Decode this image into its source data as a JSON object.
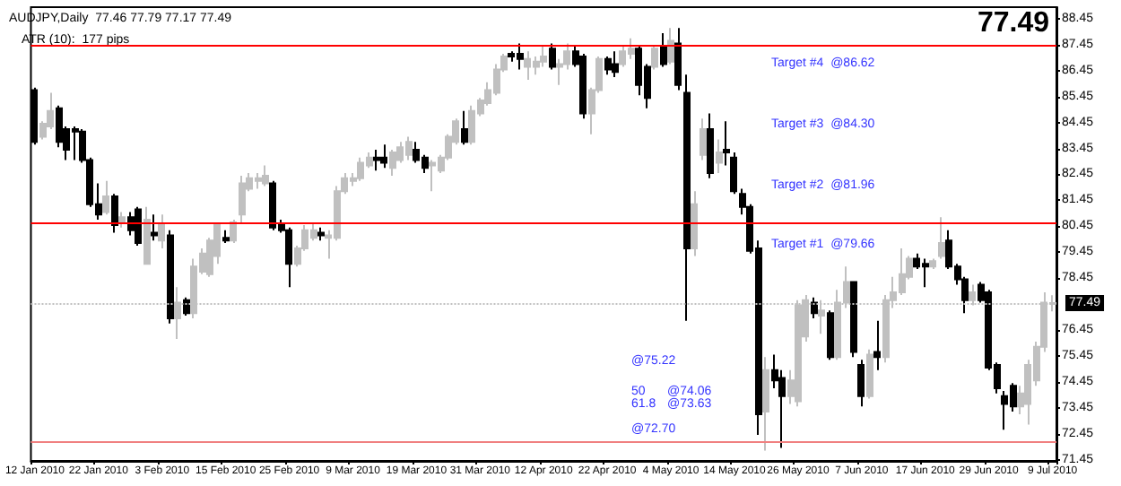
{
  "chart_data": {
    "type": "candlestick",
    "title": "AUDJPY,Daily  77.46 77.79 77.17 77.49",
    "subtitle": "ATR (10):  177 pips",
    "categories": [
      "12 Jan 2010",
      null,
      null,
      null,
      null,
      null,
      null,
      null,
      "22 Jan 2010",
      null,
      null,
      null,
      null,
      null,
      null,
      null,
      "3 Feb 2010",
      null,
      null,
      null,
      null,
      null,
      null,
      null,
      "15 Feb 2010",
      null,
      null,
      null,
      null,
      null,
      null,
      null,
      "25 Feb 2010",
      null,
      null,
      null,
      null,
      null,
      null,
      null,
      "9 Mar 2010",
      null,
      null,
      null,
      null,
      null,
      null,
      null,
      "19 Mar 2010",
      null,
      null,
      null,
      null,
      null,
      null,
      null,
      "31 Mar 2010",
      null,
      null,
      null,
      null,
      null,
      null,
      null,
      "12 Apr 2010",
      null,
      null,
      null,
      null,
      null,
      null,
      null,
      "22 Apr 2010",
      null,
      null,
      null,
      null,
      null,
      null,
      null,
      "4 May 2010",
      null,
      null,
      null,
      null,
      null,
      null,
      null,
      "14 May 2010",
      null,
      null,
      null,
      null,
      null,
      null,
      null,
      "26 May 2010",
      null,
      null,
      null,
      null,
      null,
      null,
      null,
      "7 Jun 2010",
      null,
      null,
      null,
      null,
      null,
      null,
      null,
      "17 Jun 2010",
      null,
      null,
      null,
      null,
      null,
      null,
      null,
      "29 Jun 2010",
      null,
      null,
      null,
      null,
      null,
      null,
      null,
      "9 Jul 2010"
    ],
    "ohlc": [
      [
        85.7,
        85.8,
        83.6,
        83.7
      ],
      [
        83.9,
        84.5,
        83.8,
        84.4
      ],
      [
        84.3,
        85.6,
        84.2,
        84.9
      ],
      [
        85.0,
        85.1,
        83.5,
        83.7
      ],
      [
        84.2,
        84.3,
        83.0,
        83.4
      ],
      [
        84.2,
        84.3,
        83.0,
        84.1
      ],
      [
        84.1,
        84.2,
        82.9,
        83.0
      ],
      [
        83.0,
        83.1,
        81.2,
        81.3
      ],
      [
        81.3,
        82.1,
        80.7,
        80.9
      ],
      [
        81.0,
        82.2,
        80.9,
        81.6
      ],
      [
        81.6,
        81.7,
        80.2,
        80.5
      ],
      [
        80.6,
        81.0,
        80.4,
        80.8
      ],
      [
        80.8,
        81.0,
        80.1,
        80.3
      ],
      [
        81.1,
        81.2,
        79.7,
        79.8
      ],
      [
        79.0,
        81.2,
        79.0,
        80.7
      ],
      [
        80.2,
        80.9,
        79.9,
        80.1
      ],
      [
        79.9,
        80.9,
        79.6,
        80.5
      ],
      [
        80.1,
        80.3,
        76.7,
        76.9
      ],
      [
        76.9,
        78.1,
        76.1,
        77.5
      ],
      [
        77.6,
        77.7,
        77.0,
        77.1
      ],
      [
        77.1,
        79.2,
        76.9,
        78.9
      ],
      [
        78.7,
        79.6,
        78.6,
        79.4
      ],
      [
        78.6,
        80.0,
        78.5,
        79.9
      ],
      [
        79.3,
        80.6,
        79.0,
        80.5
      ],
      [
        80.0,
        80.3,
        79.8,
        79.9
      ],
      [
        79.9,
        80.7,
        79.8,
        80.6
      ],
      [
        80.9,
        82.4,
        80.6,
        82.1
      ],
      [
        81.9,
        82.5,
        81.8,
        82.3
      ],
      [
        82.2,
        82.5,
        81.9,
        82.3
      ],
      [
        82.1,
        82.8,
        82.0,
        82.4
      ],
      [
        82.1,
        82.2,
        80.3,
        80.4
      ],
      [
        80.5,
        80.7,
        80.2,
        80.3
      ],
      [
        80.3,
        80.4,
        78.1,
        79.0
      ],
      [
        79.0,
        79.7,
        78.9,
        79.6
      ],
      [
        79.6,
        80.5,
        79.5,
        80.3
      ],
      [
        80.0,
        80.6,
        79.9,
        80.3
      ],
      [
        80.2,
        80.4,
        79.9,
        80.1
      ],
      [
        80.0,
        80.3,
        79.2,
        80.1
      ],
      [
        80.0,
        82.0,
        79.9,
        81.8
      ],
      [
        81.8,
        82.5,
        81.7,
        82.3
      ],
      [
        82.2,
        82.5,
        82.0,
        82.3
      ],
      [
        82.3,
        83.1,
        82.2,
        82.9
      ],
      [
        82.8,
        83.3,
        82.7,
        83.1
      ],
      [
        83.1,
        83.4,
        82.6,
        83.0
      ],
      [
        83.1,
        83.6,
        82.7,
        82.9
      ],
      [
        82.7,
        83.4,
        82.4,
        83.3
      ],
      [
        83.0,
        83.7,
        82.9,
        83.5
      ],
      [
        83.2,
        83.9,
        83.0,
        83.7
      ],
      [
        83.4,
        83.7,
        82.9,
        83.0
      ],
      [
        83.1,
        83.2,
        82.5,
        82.7
      ],
      [
        82.8,
        83.0,
        81.8,
        82.9
      ],
      [
        82.6,
        83.2,
        82.5,
        83.1
      ],
      [
        83.1,
        84.0,
        83.0,
        83.9
      ],
      [
        83.7,
        84.6,
        83.6,
        84.5
      ],
      [
        84.2,
        84.9,
        83.6,
        83.7
      ],
      [
        83.7,
        85.1,
        83.6,
        84.9
      ],
      [
        84.8,
        85.4,
        84.7,
        85.3
      ],
      [
        85.2,
        86.0,
        85.1,
        85.7
      ],
      [
        85.6,
        86.7,
        85.5,
        86.5
      ],
      [
        86.5,
        87.1,
        86.4,
        87.0
      ],
      [
        87.1,
        87.2,
        86.8,
        87.0
      ],
      [
        87.1,
        87.5,
        86.5,
        86.9
      ],
      [
        86.6,
        87.2,
        86.1,
        86.9
      ],
      [
        86.6,
        87.0,
        86.3,
        86.8
      ],
      [
        86.8,
        87.4,
        86.6,
        87.0
      ],
      [
        87.3,
        87.5,
        86.5,
        86.6
      ],
      [
        86.6,
        86.9,
        85.9,
        86.7
      ],
      [
        86.7,
        87.5,
        86.5,
        87.2
      ],
      [
        87.2,
        87.4,
        86.6,
        86.7
      ],
      [
        87.0,
        87.1,
        84.6,
        84.8
      ],
      [
        84.8,
        85.8,
        84.0,
        85.7
      ],
      [
        85.7,
        87.0,
        85.6,
        86.9
      ],
      [
        86.9,
        87.0,
        86.3,
        86.5
      ],
      [
        86.7,
        87.2,
        86.2,
        86.4
      ],
      [
        86.7,
        87.4,
        86.6,
        87.2
      ],
      [
        87.1,
        87.7,
        86.9,
        87.3
      ],
      [
        87.3,
        87.4,
        85.5,
        85.9
      ],
      [
        86.6,
        86.7,
        85.0,
        85.4
      ],
      [
        86.6,
        87.4,
        86.5,
        87.3
      ],
      [
        87.4,
        87.9,
        86.6,
        86.7
      ],
      [
        86.8,
        88.1,
        86.7,
        87.6
      ],
      [
        87.5,
        88.1,
        85.7,
        85.9
      ],
      [
        85.6,
        86.3,
        76.8,
        79.6
      ],
      [
        79.6,
        81.8,
        79.3,
        81.3
      ],
      [
        83.2,
        84.6,
        83.0,
        84.2
      ],
      [
        84.2,
        84.8,
        82.3,
        82.5
      ],
      [
        82.9,
        83.8,
        82.5,
        83.3
      ],
      [
        83.4,
        84.5,
        82.8,
        83.3
      ],
      [
        83.1,
        83.3,
        81.7,
        81.8
      ],
      [
        81.7,
        81.9,
        80.9,
        81.2
      ],
      [
        81.2,
        81.3,
        79.4,
        79.5
      ],
      [
        79.6,
        79.9,
        72.4,
        73.2
      ],
      [
        73.3,
        75.4,
        71.8,
        74.9
      ],
      [
        74.9,
        75.5,
        74.2,
        74.5
      ],
      [
        74.6,
        74.9,
        71.9,
        73.9
      ],
      [
        73.9,
        74.9,
        73.6,
        74.5
      ],
      [
        73.7,
        77.6,
        73.5,
        77.4
      ],
      [
        76.2,
        77.8,
        76.0,
        77.6
      ],
      [
        77.5,
        77.7,
        76.9,
        77.1
      ],
      [
        77.0,
        77.6,
        76.3,
        77.2
      ],
      [
        77.1,
        77.2,
        75.3,
        75.4
      ],
      [
        75.4,
        78.0,
        75.3,
        77.5
      ],
      [
        77.5,
        78.9,
        77.3,
        78.3
      ],
      [
        78.3,
        78.3,
        75.4,
        75.6
      ],
      [
        75.1,
        75.3,
        73.5,
        73.9
      ],
      [
        73.9,
        75.7,
        73.8,
        75.5
      ],
      [
        75.6,
        76.8,
        74.9,
        75.4
      ],
      [
        75.4,
        77.8,
        75.2,
        77.6
      ],
      [
        77.6,
        78.5,
        77.3,
        77.9
      ],
      [
        77.9,
        79.6,
        77.8,
        78.6
      ],
      [
        78.5,
        79.3,
        78.4,
        79.2
      ],
      [
        79.2,
        79.4,
        78.8,
        78.9
      ],
      [
        79.0,
        79.2,
        78.1,
        78.9
      ],
      [
        78.9,
        79.2,
        78.8,
        79.1
      ],
      [
        79.3,
        80.8,
        79.2,
        79.8
      ],
      [
        79.9,
        80.3,
        78.8,
        78.9
      ],
      [
        78.9,
        79.0,
        78.2,
        78.4
      ],
      [
        78.4,
        78.5,
        77.1,
        77.6
      ],
      [
        77.6,
        78.2,
        77.4,
        77.9
      ],
      [
        78.2,
        78.3,
        77.5,
        77.6
      ],
      [
        77.9,
        78.0,
        74.9,
        75.0
      ],
      [
        75.1,
        75.2,
        74.0,
        74.2
      ],
      [
        73.9,
        74.1,
        72.6,
        73.6
      ],
      [
        74.3,
        74.4,
        73.3,
        73.5
      ],
      [
        73.5,
        74.3,
        73.2,
        74.0
      ],
      [
        73.6,
        75.3,
        72.8,
        75.1
      ],
      [
        74.5,
        76.0,
        74.3,
        75.8
      ],
      [
        75.8,
        77.9,
        75.6,
        77.5
      ],
      [
        77.46,
        77.79,
        77.17,
        77.49
      ]
    ],
    "colors": [
      "#000000",
      "#c0c0c0",
      "#c0c0c0",
      "#000000",
      "#000000",
      "#000000",
      "#000000",
      "#000000",
      "#000000",
      "#c0c0c0",
      "#000000",
      "#c0c0c0",
      "#000000",
      "#000000",
      "#c0c0c0",
      "#000000",
      "#c0c0c0",
      "#000000",
      "#c0c0c0",
      "#000000",
      "#c0c0c0",
      "#c0c0c0",
      "#c0c0c0",
      "#c0c0c0",
      "#000000",
      "#c0c0c0",
      "#c0c0c0",
      "#c0c0c0",
      "#c0c0c0",
      "#c0c0c0",
      "#000000",
      "#000000",
      "#000000",
      "#c0c0c0",
      "#c0c0c0",
      "#c0c0c0",
      "#000000",
      "#c0c0c0",
      "#c0c0c0",
      "#c0c0c0",
      "#c0c0c0",
      "#c0c0c0",
      "#c0c0c0",
      "#000000",
      "#000000",
      "#c0c0c0",
      "#c0c0c0",
      "#c0c0c0",
      "#000000",
      "#000000",
      "#c0c0c0",
      "#c0c0c0",
      "#c0c0c0",
      "#c0c0c0",
      "#000000",
      "#c0c0c0",
      "#c0c0c0",
      "#c0c0c0",
      "#c0c0c0",
      "#c0c0c0",
      "#000000",
      "#000000",
      "#c0c0c0",
      "#c0c0c0",
      "#c0c0c0",
      "#000000",
      "#c0c0c0",
      "#c0c0c0",
      "#000000",
      "#000000",
      "#c0c0c0",
      "#c0c0c0",
      "#000000",
      "#000000",
      "#c0c0c0",
      "#c0c0c0",
      "#000000",
      "#000000",
      "#c0c0c0",
      "#000000",
      "#c0c0c0",
      "#000000",
      "#000000",
      "#c0c0c0",
      "#c0c0c0",
      "#000000",
      "#c0c0c0",
      "#000000",
      "#000000",
      "#000000",
      "#000000",
      "#000000",
      "#c0c0c0",
      "#000000",
      "#000000",
      "#c0c0c0",
      "#c0c0c0",
      "#c0c0c0",
      "#000000",
      "#c0c0c0",
      "#000000",
      "#c0c0c0",
      "#c0c0c0",
      "#000000",
      "#000000",
      "#c0c0c0",
      "#000000",
      "#c0c0c0",
      "#c0c0c0",
      "#c0c0c0",
      "#c0c0c0",
      "#000000",
      "#000000",
      "#c0c0c0",
      "#c0c0c0",
      "#000000",
      "#000000",
      "#000000",
      "#c0c0c0",
      "#000000",
      "#000000",
      "#000000",
      "#000000",
      "#000000",
      "#c0c0c0",
      "#c0c0c0",
      "#c0c0c0",
      "#c0c0c0",
      "#c0c0c0"
    ],
    "ylim": [
      71.4,
      88.9
    ],
    "yticks": [
      71.45,
      72.45,
      73.45,
      74.45,
      75.45,
      76.45,
      78.45,
      79.45,
      80.45,
      81.45,
      82.45,
      83.45,
      84.45,
      85.45,
      86.45,
      87.45,
      88.45
    ],
    "ref_lines": [
      {
        "axis": "y",
        "value": 87.43,
        "label": null,
        "color": "#ff0000",
        "line_style": "solid"
      },
      {
        "axis": "y",
        "value": 80.57,
        "label": null,
        "color": "#ff0000",
        "line_style": "solid"
      },
      {
        "axis": "y",
        "value": 72.12,
        "label": null,
        "color": "#f08080",
        "line_style": "solid"
      },
      {
        "axis": "y",
        "value": 77.49,
        "label": "77.49",
        "color": "#c0c0c0",
        "line_style": "dotted"
      }
    ],
    "annotations": [
      "77.49",
      "Target #4  @86.62",
      "Target #3  @84.30",
      "Target #2  @81.96",
      "Target #1  @79.66",
      "@75.22",
      "50",
      "@74.06",
      "61.8",
      "@73.63",
      "@72.70"
    ]
  }
}
